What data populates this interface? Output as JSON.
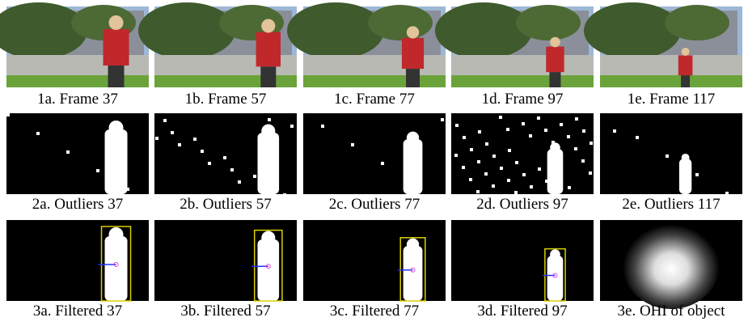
{
  "figure": {
    "rows": [
      [
        "1a. Frame 37",
        "1b. Frame 57",
        "1c. Frame 77",
        "1d. Frame 97",
        "1e. Frame 117"
      ],
      [
        "2a. Outliers 37",
        "2b. Outliers 57",
        "2c. Outliers 77",
        "2d. Outliers 97",
        "2e. Outliers 117"
      ],
      [
        "3a. Filtered 37",
        "3b. Filtered 57",
        "3c. Filtered 77",
        "3d. Filtered 97",
        "3e. OHI of object"
      ]
    ]
  }
}
